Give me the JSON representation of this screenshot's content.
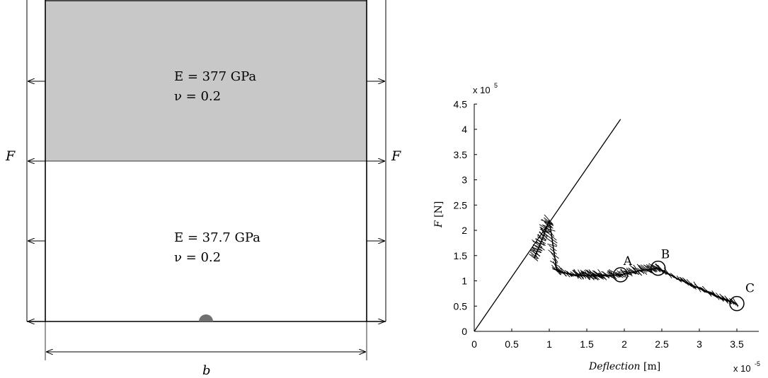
{
  "left_panel": {
    "top_layer": {
      "modulus": "E = 377 GPa",
      "poisson": "ν = 0.2"
    },
    "bottom_layer": {
      "modulus": "E = 37.7 GPa",
      "poisson": "ν = 0.2"
    },
    "force_label_left": "F",
    "force_label_right": "F",
    "width_label": "b"
  },
  "chart_data": {
    "type": "line",
    "xlabel_italic": "Deflection",
    "xlabel_unit": "[m]",
    "ylabel_italic": "F",
    "ylabel_unit": "[N]",
    "x_exponent_base": "x 10",
    "x_exponent_power": "-5",
    "y_exponent_base": "x 10",
    "y_exponent_power": "5",
    "xlim": [
      0,
      3.8
    ],
    "ylim": [
      0,
      4.6
    ],
    "x_ticks": [
      0,
      0.5,
      1,
      1.5,
      2,
      2.5,
      3,
      3.5
    ],
    "x_tick_labels": [
      "0",
      "0.5",
      "1",
      "1.5",
      "2",
      "2.5",
      "3",
      "3.5"
    ],
    "y_ticks": [
      0,
      0.5,
      1,
      1.5,
      2,
      2.5,
      3,
      3.5,
      4,
      4.5
    ],
    "y_tick_labels": [
      "0",
      "0.5",
      "1",
      "1.5",
      "2",
      "2.5",
      "3",
      "3.5",
      "4",
      "4.5"
    ],
    "series": [
      {
        "x": [
          0,
          1.95
        ],
        "y": [
          0,
          4.2
        ]
      },
      {
        "x": [
          0.8,
          0.9,
          1.0,
          1.1,
          1.3,
          1.5,
          1.7,
          1.95,
          2.2,
          2.45,
          2.7,
          3.0,
          3.3,
          3.5
        ],
        "y": [
          1.45,
          1.8,
          2.2,
          1.2,
          1.12,
          1.1,
          1.1,
          1.12,
          1.2,
          1.25,
          1.05,
          0.85,
          0.65,
          0.55
        ]
      }
    ],
    "markers": [
      {
        "label": "A",
        "x": 1.95,
        "y": 1.12
      },
      {
        "label": "B",
        "x": 2.45,
        "y": 1.25
      },
      {
        "label": "C",
        "x": 3.5,
        "y": 0.55
      }
    ]
  }
}
